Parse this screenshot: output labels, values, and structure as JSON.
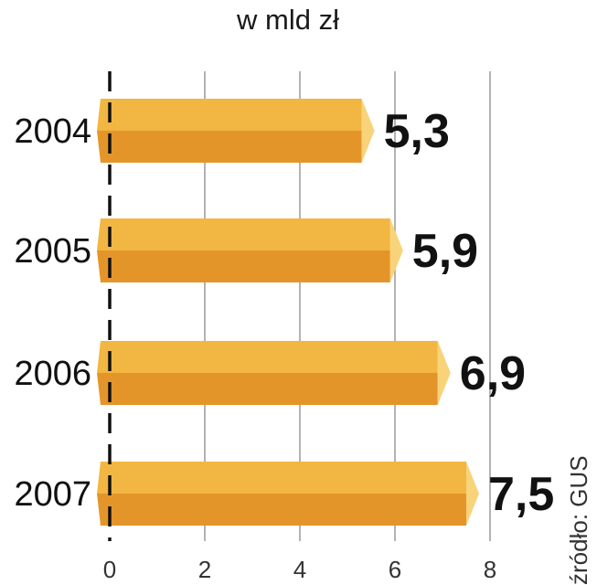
{
  "unit_title": "w mld zł",
  "source": "źródło: GUS",
  "colors": {
    "bar_top": "#f2b642",
    "bar_bottom": "#e4952a",
    "bar_cap": "#f8d37a",
    "axis": "#111111",
    "grid": "#9a9a9a",
    "text": "#111111"
  },
  "chart_data": {
    "type": "bar",
    "orientation": "horizontal",
    "categories": [
      "2004",
      "2005",
      "2006",
      "2007"
    ],
    "values": [
      5.3,
      5.9,
      6.9,
      7.5
    ],
    "value_labels": [
      "5,3",
      "5,9",
      "6,9",
      "7,5"
    ],
    "xlim": [
      0,
      8
    ],
    "xticks": [
      "0",
      "2",
      "4",
      "6",
      "8"
    ],
    "grid": true,
    "unit": "w mld zł"
  }
}
